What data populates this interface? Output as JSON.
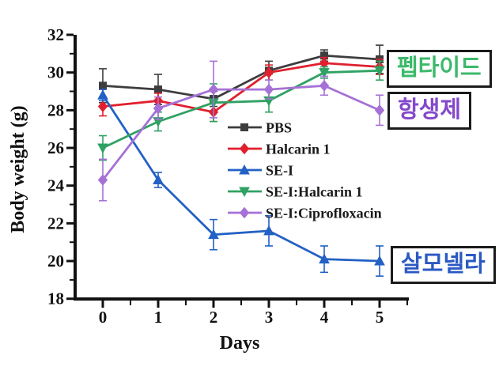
{
  "figure": {
    "background": "#ffffff",
    "axis_color": "#111111",
    "text_color": "#111111"
  },
  "chart_data": {
    "type": "line",
    "title": "",
    "xlabel": "Days",
    "ylabel": "Body weight (g)",
    "x": [
      0,
      1,
      2,
      3,
      4,
      5
    ],
    "xticks": [
      0,
      1,
      2,
      3,
      4,
      5
    ],
    "yticks": [
      18,
      20,
      22,
      24,
      26,
      28,
      30,
      32
    ],
    "xlim": [
      -0.55,
      5.55
    ],
    "ylim": [
      18,
      32
    ],
    "grid": false,
    "legend_position": "inside-right-middle",
    "series": [
      {
        "name": "PBS",
        "color": "#3d3d3f",
        "marker": "square",
        "values": [
          29.3,
          29.1,
          28.6,
          30.1,
          30.9,
          30.7
        ],
        "errors": [
          0.9,
          0.8,
          0.4,
          0.5,
          0.3,
          0.75
        ]
      },
      {
        "name": "Halcarin 1",
        "color": "#e0202e",
        "marker": "diamond",
        "values": [
          28.2,
          28.5,
          27.9,
          30.0,
          30.5,
          30.3
        ],
        "errors": [
          0.5,
          0.4,
          0.5,
          0.4,
          0.3,
          0.4
        ]
      },
      {
        "name": "SE-I",
        "color": "#2361c5",
        "marker": "triangle-up",
        "values": [
          28.8,
          24.3,
          21.4,
          21.6,
          20.1,
          20.0
        ],
        "errors": [
          0.3,
          0.4,
          0.8,
          0.8,
          0.7,
          0.8
        ]
      },
      {
        "name": "SE-I:Halcarin 1",
        "color": "#2fa263",
        "marker": "triangle-down",
        "values": [
          26.0,
          27.4,
          28.4,
          28.5,
          30.0,
          30.1
        ],
        "errors": [
          0.65,
          0.5,
          1.0,
          0.6,
          0.3,
          0.5
        ]
      },
      {
        "name": "SE-I:Ciprofloxacin",
        "color": "#a671d6",
        "marker": "diamond",
        "values": [
          24.3,
          28.1,
          29.1,
          29.1,
          29.3,
          28.0
        ],
        "errors": [
          1.1,
          0.6,
          1.5,
          0.5,
          0.5,
          0.8
        ]
      }
    ],
    "annotations": [
      {
        "text": "펩타이드",
        "color": "#3cb96a"
      },
      {
        "text": "항생제",
        "color": "#8448cc"
      },
      {
        "text": "살모넬라",
        "color": "#2b59c3"
      }
    ]
  }
}
